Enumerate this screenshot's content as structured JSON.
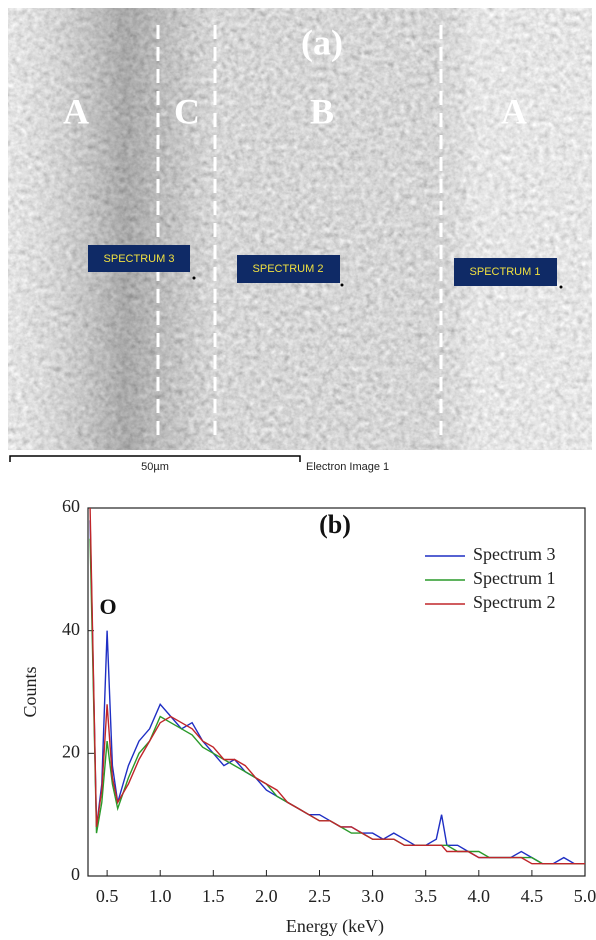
{
  "image": {
    "title": "(a)",
    "regions": [
      "A",
      "C",
      "B",
      "A"
    ],
    "spectra": [
      "SPECTRUM 3",
      "SPECTRUM 2",
      "SPECTRUM 1"
    ],
    "scale_bar": "50µm",
    "caption": "Electron Image 1"
  },
  "chart_data": {
    "type": "line",
    "title": "(b)",
    "annotation": "O",
    "x_label": "Energy (keV)",
    "y_label": "Counts",
    "x": [
      0.34,
      0.4,
      0.45,
      0.5,
      0.55,
      0.6,
      0.7,
      0.8,
      0.9,
      1.0,
      1.1,
      1.2,
      1.3,
      1.4,
      1.5,
      1.6,
      1.7,
      1.8,
      1.9,
      2.0,
      2.1,
      2.2,
      2.3,
      2.4,
      2.5,
      2.6,
      2.7,
      2.8,
      2.9,
      3.0,
      3.1,
      3.2,
      3.3,
      3.4,
      3.5,
      3.6,
      3.65,
      3.7,
      3.8,
      3.9,
      4.0,
      4.1,
      4.2,
      4.3,
      4.4,
      4.5,
      4.6,
      4.7,
      4.8,
      4.9,
      5.0
    ],
    "series": [
      {
        "name": "Spectrum 3",
        "color": "#1f2fc4",
        "values": [
          58,
          8,
          15,
          40,
          18,
          12,
          18,
          22,
          24,
          28,
          26,
          24,
          25,
          22,
          20,
          18,
          19,
          17,
          16,
          14,
          13,
          12,
          11,
          10,
          10,
          9,
          8,
          8,
          7,
          7,
          6,
          7,
          6,
          5,
          5,
          6,
          10,
          5,
          5,
          4,
          3,
          3,
          3,
          3,
          4,
          3,
          2,
          2,
          3,
          2,
          2
        ]
      },
      {
        "name": "Spectrum 1",
        "color": "#2a9a2a",
        "values": [
          55,
          7,
          12,
          22,
          15,
          11,
          16,
          20,
          22,
          26,
          25,
          24,
          23,
          21,
          20,
          19,
          18,
          17,
          16,
          15,
          13,
          12,
          11,
          10,
          9,
          9,
          8,
          7,
          7,
          6,
          6,
          6,
          5,
          5,
          5,
          5,
          5,
          5,
          4,
          4,
          4,
          3,
          3,
          3,
          3,
          3,
          2,
          2,
          2,
          2,
          2
        ]
      },
      {
        "name": "Spectrum 2",
        "color": "#c0262a",
        "values": [
          60,
          8,
          14,
          28,
          16,
          12,
          15,
          19,
          22,
          25,
          26,
          25,
          24,
          22,
          21,
          19,
          19,
          18,
          16,
          15,
          14,
          12,
          11,
          10,
          9,
          9,
          8,
          8,
          7,
          6,
          6,
          6,
          5,
          5,
          5,
          5,
          5,
          4,
          4,
          4,
          3,
          3,
          3,
          3,
          3,
          2,
          2,
          2,
          2,
          2,
          2
        ]
      }
    ],
    "xlim": [
      0.32,
      5.0
    ],
    "ylim": [
      0,
      60
    ],
    "xticks": [
      0.5,
      {
        "value": 1,
        "label": "1.0"
      },
      1.5,
      {
        "value": 2,
        "label": "2.0"
      },
      2.5,
      {
        "value": 3,
        "label": "3.0"
      },
      3.5,
      {
        "value": 4,
        "label": "4.0"
      },
      4.5,
      {
        "value": 5,
        "label": "5.0"
      }
    ],
    "yticks": [
      0,
      20,
      40,
      60
    ],
    "grid": false,
    "legend": "upper right"
  }
}
